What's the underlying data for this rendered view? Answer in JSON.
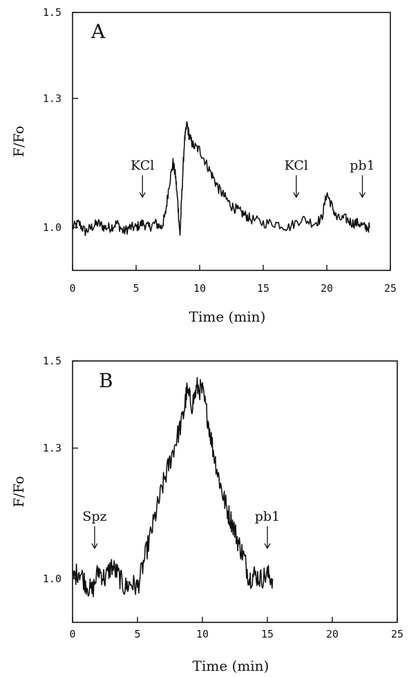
{
  "chart_data": [
    {
      "type": "line",
      "panel_label": "A",
      "xlabel": "Time (min)",
      "ylabel": "F/Fo",
      "xlim": [
        0,
        25
      ],
      "ylim": [
        0.9,
        1.5
      ],
      "xticks": [
        0,
        5,
        10,
        15,
        20,
        25
      ],
      "xtick_labels": [
        "0",
        "5",
        "10",
        "15",
        "20",
        "25"
      ],
      "yticks": [
        1.0,
        1.3,
        1.5
      ],
      "ytick_labels": [
        "1.0",
        "1.3",
        "1.5"
      ],
      "grid": false,
      "series": [
        {
          "x": [
            0,
            0.5,
            1,
            1.5,
            2,
            2.5,
            3,
            3.5,
            4,
            4.5,
            5,
            5.5,
            6,
            6.5,
            7,
            7.3,
            7.6,
            7.9,
            8.1,
            8.3,
            8.45,
            8.6,
            8.8,
            9.0,
            9.2,
            9.5,
            10,
            10.5,
            11,
            11.5,
            12,
            12.5,
            13,
            13.5,
            14,
            15,
            16,
            17,
            18,
            19,
            19.6,
            20,
            20.4,
            20.8,
            21.5,
            22,
            22.5,
            23,
            23.4
          ],
          "values": [
            1.0,
            1.01,
            0.99,
            1.0,
            1.01,
            1.0,
            1.0,
            1.01,
            0.99,
            1.0,
            1.0,
            1.01,
            1.0,
            1.01,
            1.0,
            1.03,
            1.1,
            1.15,
            1.12,
            1.05,
            0.98,
            1.08,
            1.2,
            1.24,
            1.21,
            1.19,
            1.18,
            1.15,
            1.12,
            1.09,
            1.07,
            1.05,
            1.04,
            1.03,
            1.02,
            1.01,
            1.01,
            1.0,
            1.02,
            1.01,
            1.02,
            1.08,
            1.05,
            1.02,
            1.02,
            1.01,
            1.01,
            1.0,
            1.0
          ]
        }
      ],
      "annotations": [
        {
          "text": "KCl",
          "x": 5.5,
          "y": 1.07
        },
        {
          "text": "KCl",
          "x": 17.6,
          "y": 1.07
        },
        {
          "text": "pb1",
          "x": 22.8,
          "y": 1.07
        }
      ]
    },
    {
      "type": "line",
      "panel_label": "B",
      "xlabel": "Time (min)",
      "ylabel": "F/Fo",
      "xlim": [
        0,
        25
      ],
      "ylim": [
        0.9,
        1.5
      ],
      "xticks": [
        0,
        5,
        10,
        15,
        20,
        25
      ],
      "xtick_labels": [
        "0",
        "5",
        "10",
        "15",
        "20",
        "25"
      ],
      "yticks": [
        1.0,
        1.3,
        1.5
      ],
      "ytick_labels": [
        "1.0",
        "1.3",
        "1.5"
      ],
      "grid": false,
      "series": [
        {
          "x": [
            0,
            0.5,
            1,
            1.5,
            2,
            2.5,
            3,
            3.5,
            4,
            4.5,
            5,
            5.5,
            6,
            6.5,
            7,
            7.5,
            8,
            8.5,
            8.8,
            9.2,
            9.6,
            10,
            10.4,
            10.8,
            11.2,
            11.6,
            12,
            12.4,
            12.8,
            13.2,
            13.6,
            14,
            14.5,
            15,
            15.4
          ],
          "values": [
            1.0,
            1.02,
            0.99,
            0.97,
            1.02,
            1.0,
            1.03,
            1.01,
            0.98,
            0.99,
            0.98,
            1.04,
            1.1,
            1.16,
            1.22,
            1.27,
            1.32,
            1.37,
            1.43,
            1.4,
            1.44,
            1.43,
            1.37,
            1.3,
            1.24,
            1.19,
            1.15,
            1.12,
            1.08,
            1.05,
            1.0,
            1.01,
            1.0,
            1.01,
            1.0
          ]
        }
      ],
      "annotations": [
        {
          "text": "Spz",
          "x": 1.7,
          "y": 1.07
        },
        {
          "text": "pb1",
          "x": 15.0,
          "y": 1.07
        }
      ]
    }
  ]
}
